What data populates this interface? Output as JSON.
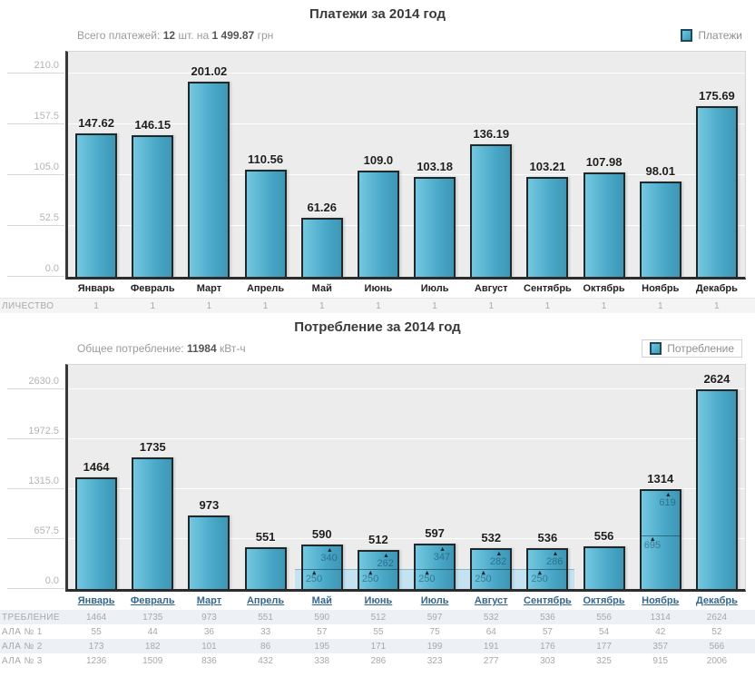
{
  "chart_data": [
    {
      "type": "bar",
      "title": "Платежи за 2014 год",
      "subtitle": {
        "label": "Всего платежей:",
        "count": "12",
        "infix": "шт. на",
        "amount": "1 499.87",
        "unit": "грн"
      },
      "legend": "Платежи",
      "legend_position": "top-right",
      "categories": [
        "Январь",
        "Февраль",
        "Март",
        "Апрель",
        "Май",
        "Июнь",
        "Июль",
        "Август",
        "Сентябрь",
        "Октябрь",
        "Ноябрь",
        "Декабрь"
      ],
      "values": [
        147.62,
        146.15,
        201.02,
        110.56,
        61.26,
        109.0,
        103.18,
        136.19,
        103.21,
        107.98,
        98.01,
        175.69
      ],
      "bar_labels": [
        "147.62",
        "146.15",
        "201.02",
        "110.56",
        "61.26",
        "109.0",
        "103.18",
        "136.19",
        "103.21",
        "107.98",
        "98.01",
        "175.69"
      ],
      "yticks": [
        {
          "value": 0,
          "label": "0.0"
        },
        {
          "value": 52.5,
          "label": "52.5"
        },
        {
          "value": 105,
          "label": "105.0"
        },
        {
          "value": 157.5,
          "label": "157.5"
        },
        {
          "value": 210,
          "label": "210.0"
        }
      ],
      "ylim": [
        0,
        232
      ],
      "xlabel": "",
      "ylabel": "",
      "grid": true,
      "bar_color": "#49a8c8",
      "months_clickable": false,
      "table": {
        "row_labels": [
          "ЛИЧЕСТВО"
        ],
        "rows": [
          [
            "1",
            "1",
            "1",
            "1",
            "1",
            "1",
            "1",
            "1",
            "1",
            "1",
            "1",
            "1"
          ]
        ]
      }
    },
    {
      "type": "bar",
      "title": "Потребление за 2014 год",
      "subtitle": {
        "label": "Общее потребление:",
        "count": "11984",
        "unit": "кВт-ч"
      },
      "legend": "Потребление",
      "legend_position": "top-right",
      "categories": [
        "Январь",
        "Февраль",
        "Март",
        "Апрель",
        "Май",
        "Июнь",
        "Июль",
        "Август",
        "Сентябрь",
        "Октябрь",
        "Ноябрь",
        "Декабрь"
      ],
      "values": [
        1464,
        1735,
        973,
        551,
        590,
        512,
        597,
        532,
        536,
        556,
        1314,
        2624
      ],
      "bar_labels": [
        "1464",
        "1735",
        "973",
        "551",
        "590",
        "512",
        "597",
        "532",
        "536",
        "556",
        "1314",
        "2624"
      ],
      "yticks": [
        {
          "value": 0,
          "label": "0.0"
        },
        {
          "value": 657.5,
          "label": "657.5"
        },
        {
          "value": 1315,
          "label": "1315.0"
        },
        {
          "value": 1972.5,
          "label": "1972.5"
        },
        {
          "value": 2630,
          "label": "2630.0"
        }
      ],
      "ylim": [
        0,
        2950
      ],
      "xlabel": "",
      "ylabel": "",
      "grid": true,
      "bar_color": "#49a8c8",
      "months_clickable": true,
      "band": {
        "start_month_index": 4,
        "end_month_index": 8,
        "level": 250
      },
      "markers": [
        {
          "month_index": 4,
          "split": 250,
          "above": 340
        },
        {
          "month_index": 5,
          "split": 250,
          "above": 262
        },
        {
          "month_index": 6,
          "split": 250,
          "above": 347
        },
        {
          "month_index": 7,
          "split": 250,
          "above": 282
        },
        {
          "month_index": 8,
          "split": 250,
          "above": 286
        },
        {
          "month_index": 10,
          "split": 695,
          "above": 619
        }
      ],
      "table": {
        "row_labels": [
          "ТРЕБЛЕНИЕ",
          "АЛА № 1",
          "АЛА № 2",
          "АЛА № 3"
        ],
        "rows": [
          [
            "1464",
            "1735",
            "973",
            "551",
            "590",
            "512",
            "597",
            "532",
            "536",
            "556",
            "1314",
            "2624"
          ],
          [
            "55",
            "44",
            "36",
            "33",
            "57",
            "55",
            "75",
            "64",
            "57",
            "54",
            "42",
            "52"
          ],
          [
            "173",
            "182",
            "101",
            "86",
            "195",
            "171",
            "199",
            "191",
            "176",
            "177",
            "357",
            "566"
          ],
          [
            "1236",
            "1509",
            "836",
            "432",
            "338",
            "286",
            "323",
            "277",
            "303",
            "325",
            "915",
            "2006"
          ]
        ]
      }
    }
  ]
}
